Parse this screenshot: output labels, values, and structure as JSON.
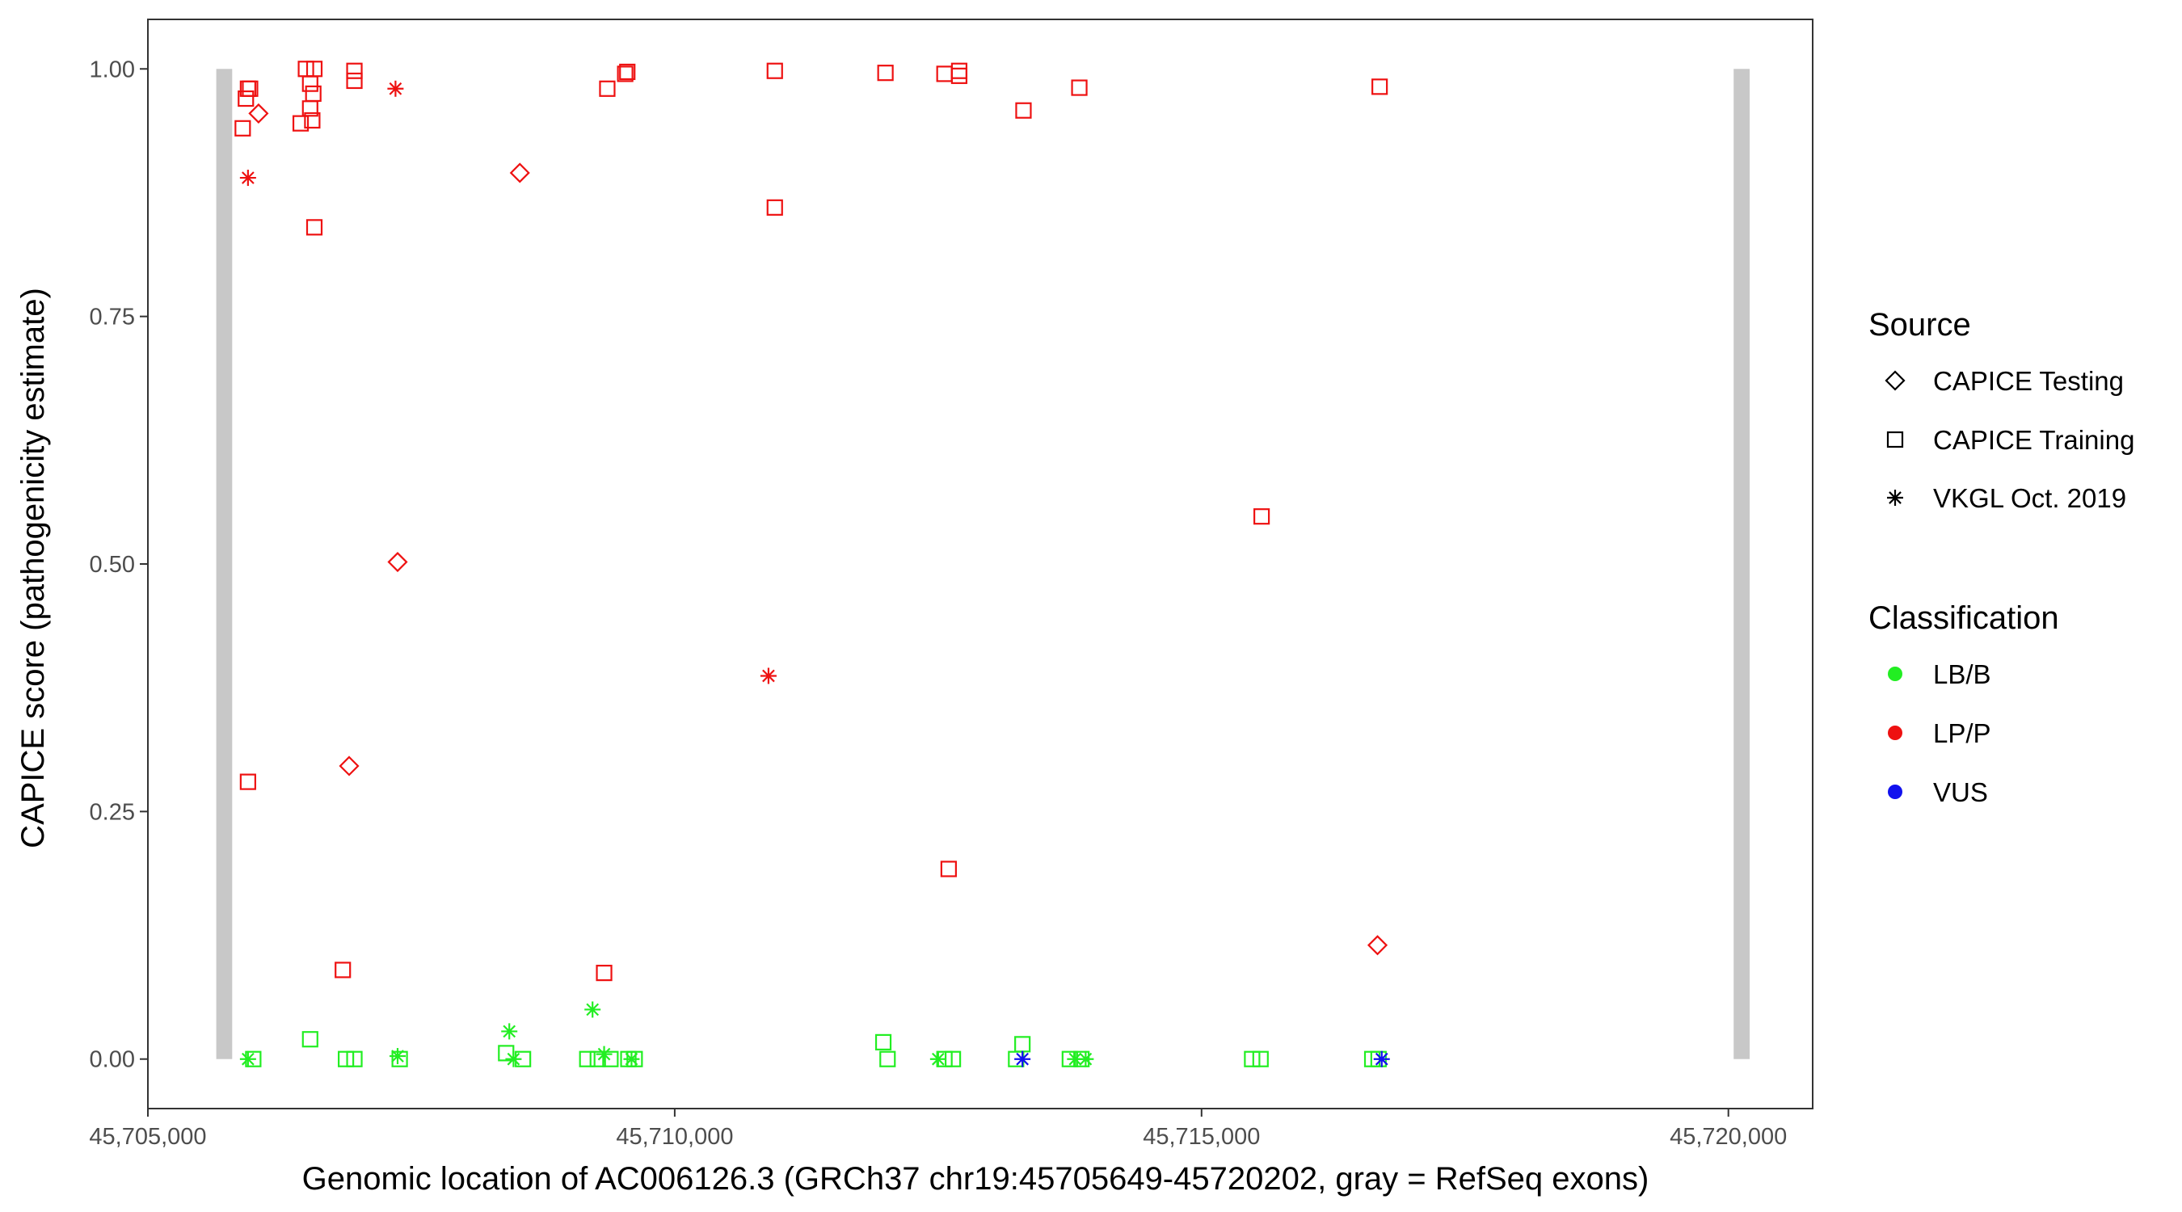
{
  "chart_data": {
    "type": "scatter",
    "xlabel": "Genomic location of AC006126.3 (GRCh37 chr19:45705649-45720202, gray = RefSeq exons)",
    "ylabel": "CAPICE score (pathogenicity estimate)",
    "xlim": [
      45705000,
      45720800
    ],
    "ylim": [
      -0.05,
      1.05
    ],
    "x_ticks": [
      45705000,
      45710000,
      45715000,
      45720000
    ],
    "x_tick_labels": [
      "45,705,000",
      "45,710,000",
      "45,715,000",
      "45,720,000"
    ],
    "y_ticks": [
      0,
      0.25,
      0.5,
      0.75,
      1.0
    ],
    "y_tick_labels": [
      "0.00",
      "0.25",
      "0.50",
      "0.75",
      "1.00"
    ],
    "grid": false,
    "exons": [
      {
        "start": 45705649,
        "end": 45705800,
        "ymin": 0,
        "ymax": 1
      },
      {
        "start": 45720050,
        "end": 45720202,
        "ymin": 0,
        "ymax": 1
      }
    ],
    "exon_color": "#c8c8c8",
    "legend": {
      "placement": "right",
      "source_title": "Source",
      "source_items": [
        {
          "label": "CAPICE Testing",
          "shape": "diamond"
        },
        {
          "label": "CAPICE Training",
          "shape": "square"
        },
        {
          "label": "VKGL Oct. 2019",
          "shape": "asterisk"
        }
      ],
      "classification_title": "Classification",
      "classification_items": [
        {
          "label": "LB/B",
          "color": "#22ee22"
        },
        {
          "label": "LP/P",
          "color": "#ee1111"
        },
        {
          "label": "VUS",
          "color": "#1111ee"
        }
      ]
    },
    "points": [
      {
        "x": 45705930,
        "y": 0.97,
        "source": "CAPICE Training",
        "class": "LP/P"
      },
      {
        "x": 45705950,
        "y": 0.98,
        "source": "CAPICE Training",
        "class": "LP/P"
      },
      {
        "x": 45705970,
        "y": 0.98,
        "source": "CAPICE Training",
        "class": "LP/P"
      },
      {
        "x": 45705900,
        "y": 0.94,
        "source": "CAPICE Training",
        "class": "LP/P"
      },
      {
        "x": 45706050,
        "y": 0.955,
        "source": "CAPICE Testing",
        "class": "LP/P"
      },
      {
        "x": 45705950,
        "y": 0.89,
        "source": "VKGL Oct. 2019",
        "class": "LP/P"
      },
      {
        "x": 45705950,
        "y": 0.28,
        "source": "CAPICE Training",
        "class": "LP/P"
      },
      {
        "x": 45706500,
        "y": 1.0,
        "source": "CAPICE Training",
        "class": "LP/P"
      },
      {
        "x": 45706580,
        "y": 1.0,
        "source": "CAPICE Training",
        "class": "LP/P"
      },
      {
        "x": 45706540,
        "y": 0.985,
        "source": "CAPICE Training",
        "class": "LP/P"
      },
      {
        "x": 45706570,
        "y": 0.975,
        "source": "CAPICE Training",
        "class": "LP/P"
      },
      {
        "x": 45706540,
        "y": 0.96,
        "source": "CAPICE Training",
        "class": "LP/P"
      },
      {
        "x": 45706450,
        "y": 0.945,
        "source": "CAPICE Training",
        "class": "LP/P"
      },
      {
        "x": 45706560,
        "y": 0.948,
        "source": "CAPICE Training",
        "class": "LP/P"
      },
      {
        "x": 45706580,
        "y": 0.84,
        "source": "CAPICE Training",
        "class": "LP/P"
      },
      {
        "x": 45706960,
        "y": 0.998,
        "source": "CAPICE Training",
        "class": "LP/P"
      },
      {
        "x": 45706960,
        "y": 0.988,
        "source": "CAPICE Training",
        "class": "LP/P"
      },
      {
        "x": 45707350,
        "y": 0.98,
        "source": "VKGL Oct. 2019",
        "class": "LP/P"
      },
      {
        "x": 45708530,
        "y": 0.895,
        "source": "CAPICE Testing",
        "class": "LP/P"
      },
      {
        "x": 45707370,
        "y": 0.502,
        "source": "CAPICE Testing",
        "class": "LP/P"
      },
      {
        "x": 45706910,
        "y": 0.296,
        "source": "CAPICE Testing",
        "class": "LP/P"
      },
      {
        "x": 45706850,
        "y": 0.09,
        "source": "CAPICE Training",
        "class": "LP/P"
      },
      {
        "x": 45709360,
        "y": 0.98,
        "source": "CAPICE Training",
        "class": "LP/P"
      },
      {
        "x": 45709530,
        "y": 0.995,
        "source": "CAPICE Training",
        "class": "LP/P"
      },
      {
        "x": 45709550,
        "y": 0.997,
        "source": "CAPICE Training",
        "class": "LP/P"
      },
      {
        "x": 45709330,
        "y": 0.087,
        "source": "CAPICE Training",
        "class": "LP/P"
      },
      {
        "x": 45710950,
        "y": 0.998,
        "source": "CAPICE Training",
        "class": "LP/P"
      },
      {
        "x": 45710950,
        "y": 0.86,
        "source": "CAPICE Training",
        "class": "LP/P"
      },
      {
        "x": 45710890,
        "y": 0.387,
        "source": "VKGL Oct. 2019",
        "class": "LP/P"
      },
      {
        "x": 45712000,
        "y": 0.996,
        "source": "CAPICE Training",
        "class": "LP/P"
      },
      {
        "x": 45712560,
        "y": 0.995,
        "source": "CAPICE Training",
        "class": "LP/P"
      },
      {
        "x": 45712700,
        "y": 0.998,
        "source": "CAPICE Training",
        "class": "LP/P"
      },
      {
        "x": 45712700,
        "y": 0.993,
        "source": "CAPICE Training",
        "class": "LP/P"
      },
      {
        "x": 45712600,
        "y": 0.192,
        "source": "CAPICE Training",
        "class": "LP/P"
      },
      {
        "x": 45713310,
        "y": 0.958,
        "source": "CAPICE Training",
        "class": "LP/P"
      },
      {
        "x": 45713840,
        "y": 0.981,
        "source": "CAPICE Training",
        "class": "LP/P"
      },
      {
        "x": 45715570,
        "y": 0.548,
        "source": "CAPICE Training",
        "class": "LP/P"
      },
      {
        "x": 45716690,
        "y": 0.982,
        "source": "CAPICE Training",
        "class": "LP/P"
      },
      {
        "x": 45716670,
        "y": 0.115,
        "source": "CAPICE Testing",
        "class": "LP/P"
      },
      {
        "x": 45705950,
        "y": 0.0,
        "source": "VKGL Oct. 2019",
        "class": "LB/B"
      },
      {
        "x": 45706000,
        "y": 0.0,
        "source": "CAPICE Training",
        "class": "LB/B"
      },
      {
        "x": 45706540,
        "y": 0.02,
        "source": "CAPICE Training",
        "class": "LB/B"
      },
      {
        "x": 45706880,
        "y": 0.0,
        "source": "CAPICE Training",
        "class": "LB/B"
      },
      {
        "x": 45706960,
        "y": 0.0,
        "source": "CAPICE Training",
        "class": "LB/B"
      },
      {
        "x": 45707370,
        "y": 0.003,
        "source": "VKGL Oct. 2019",
        "class": "LB/B"
      },
      {
        "x": 45707390,
        "y": 0.0,
        "source": "CAPICE Training",
        "class": "LB/B"
      },
      {
        "x": 45708430,
        "y": 0.028,
        "source": "VKGL Oct. 2019",
        "class": "LB/B"
      },
      {
        "x": 45708400,
        "y": 0.006,
        "source": "CAPICE Training",
        "class": "LB/B"
      },
      {
        "x": 45708470,
        "y": 0.0,
        "source": "VKGL Oct. 2019",
        "class": "LB/B"
      },
      {
        "x": 45708560,
        "y": 0.0,
        "source": "CAPICE Training",
        "class": "LB/B"
      },
      {
        "x": 45709220,
        "y": 0.05,
        "source": "VKGL Oct. 2019",
        "class": "LB/B"
      },
      {
        "x": 45709170,
        "y": 0.0,
        "source": "CAPICE Training",
        "class": "LB/B"
      },
      {
        "x": 45709270,
        "y": 0.0,
        "source": "CAPICE Training",
        "class": "LB/B"
      },
      {
        "x": 45709330,
        "y": 0.005,
        "source": "VKGL Oct. 2019",
        "class": "LB/B"
      },
      {
        "x": 45709390,
        "y": 0.0,
        "source": "CAPICE Training",
        "class": "LB/B"
      },
      {
        "x": 45709560,
        "y": 0.0,
        "source": "CAPICE Training",
        "class": "LB/B"
      },
      {
        "x": 45709590,
        "y": 0.0,
        "source": "VKGL Oct. 2019",
        "class": "LB/B"
      },
      {
        "x": 45709620,
        "y": 0.0,
        "source": "CAPICE Training",
        "class": "LB/B"
      },
      {
        "x": 45711980,
        "y": 0.017,
        "source": "CAPICE Training",
        "class": "LB/B"
      },
      {
        "x": 45712020,
        "y": 0.0,
        "source": "CAPICE Training",
        "class": "LB/B"
      },
      {
        "x": 45712500,
        "y": 0.0,
        "source": "VKGL Oct. 2019",
        "class": "LB/B"
      },
      {
        "x": 45712560,
        "y": 0.0,
        "source": "CAPICE Training",
        "class": "LB/B"
      },
      {
        "x": 45712640,
        "y": 0.0,
        "source": "CAPICE Training",
        "class": "LB/B"
      },
      {
        "x": 45713300,
        "y": 0.015,
        "source": "CAPICE Training",
        "class": "LB/B"
      },
      {
        "x": 45713240,
        "y": 0.0,
        "source": "CAPICE Training",
        "class": "LB/B"
      },
      {
        "x": 45713750,
        "y": 0.0,
        "source": "CAPICE Training",
        "class": "LB/B"
      },
      {
        "x": 45713800,
        "y": 0.0,
        "source": "VKGL Oct. 2019",
        "class": "LB/B"
      },
      {
        "x": 45713860,
        "y": 0.0,
        "source": "CAPICE Training",
        "class": "LB/B"
      },
      {
        "x": 45713900,
        "y": 0.0,
        "source": "VKGL Oct. 2019",
        "class": "LB/B"
      },
      {
        "x": 45715480,
        "y": 0.0,
        "source": "CAPICE Training",
        "class": "LB/B"
      },
      {
        "x": 45715560,
        "y": 0.0,
        "source": "CAPICE Training",
        "class": "LB/B"
      },
      {
        "x": 45716620,
        "y": 0.0,
        "source": "CAPICE Training",
        "class": "LB/B"
      },
      {
        "x": 45716680,
        "y": 0.0,
        "source": "CAPICE Training",
        "class": "LB/B"
      },
      {
        "x": 45713300,
        "y": 0.0,
        "source": "VKGL Oct. 2019",
        "class": "VUS"
      },
      {
        "x": 45716710,
        "y": 0.0,
        "source": "VKGL Oct. 2019",
        "class": "VUS"
      }
    ]
  }
}
